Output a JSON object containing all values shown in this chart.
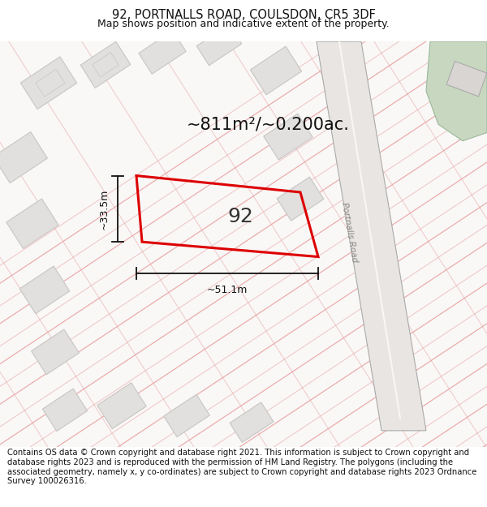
{
  "title_line1": "92, PORTNALLS ROAD, COULSDON, CR5 3DF",
  "title_line2": "Map shows position and indicative extent of the property.",
  "footer_text": "Contains OS data © Crown copyright and database right 2021. This information is subject to Crown copyright and database rights 2023 and is reproduced with the permission of HM Land Registry. The polygons (including the associated geometry, namely x, y co-ordinates) are subject to Crown copyright and database rights 2023 Ordnance Survey 100026316.",
  "area_text": "~811m²/~0.200ac.",
  "label_92": "92",
  "dim_width": "~51.1m",
  "dim_height": "~33.5m",
  "map_bg": "#f9f8f7",
  "plot_fill": "none",
  "plot_edge": "#dd0000",
  "other_plot_fill": "#e2e0de",
  "other_plot_edge": "#c8c6c4",
  "road_line_color": "#e8a0a0",
  "road_bg_color": "#f0eeec",
  "dim_color": "#111111",
  "title_fontsize": 10.5,
  "subtitle_fontsize": 9,
  "footer_fontsize": 7.2,
  "area_fontsize": 15,
  "label_fontsize": 18,
  "dim_fontsize": 9,
  "green_patch_color": "#c8d8c0",
  "road_label": "Portnalls Road",
  "road_fill": "#e8e5e2",
  "road_edge": "#aaaaaa"
}
